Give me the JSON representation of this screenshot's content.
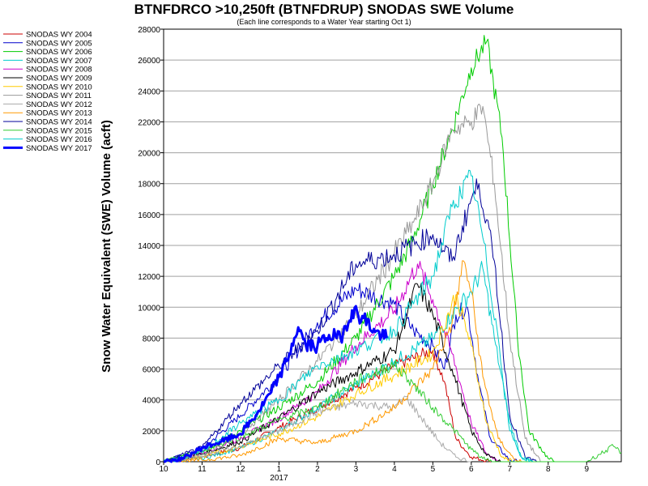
{
  "chart_data": {
    "type": "line",
    "title": "BTNFDRCO >10,250ft (BTNFDRUP) SNODAS SWE Volume",
    "subtitle": "(Each line corresponds to a Water Year starting Oct 1)",
    "ylabel": "Snow Water Equivalent (SWE) Volume (acft)",
    "xlabel": "",
    "ylim": [
      0,
      28000
    ],
    "yticks": [
      0,
      2000,
      4000,
      6000,
      8000,
      10000,
      12000,
      14000,
      16000,
      18000,
      20000,
      22000,
      24000,
      26000,
      28000
    ],
    "xlim_month_index": [
      0,
      11.9
    ],
    "xticks": [
      {
        "pos": 0,
        "label": "10"
      },
      {
        "pos": 1,
        "label": "11"
      },
      {
        "pos": 2,
        "label": "12"
      },
      {
        "pos": 3,
        "label": "1"
      },
      {
        "pos": 4,
        "label": "2"
      },
      {
        "pos": 5,
        "label": "3"
      },
      {
        "pos": 6,
        "label": "4"
      },
      {
        "pos": 7,
        "label": "5"
      },
      {
        "pos": 8,
        "label": "6"
      },
      {
        "pos": 9,
        "label": "7"
      },
      {
        "pos": 10,
        "label": "8"
      },
      {
        "pos": 11,
        "label": "9"
      }
    ],
    "year_label": {
      "pos": 3,
      "label": "2017"
    },
    "grid": "horizontal",
    "legend_position": "left",
    "series": [
      {
        "name": "SNODAS WY 2004",
        "color": "#cc0000",
        "width": 1,
        "points": [
          [
            0,
            0
          ],
          [
            1,
            300
          ],
          [
            2,
            900
          ],
          [
            3,
            2200
          ],
          [
            4,
            3500
          ],
          [
            5,
            4800
          ],
          [
            6,
            6200
          ],
          [
            7,
            7200
          ],
          [
            7.3,
            5200
          ],
          [
            7.6,
            1500
          ],
          [
            8,
            300
          ],
          [
            8.5,
            0
          ]
        ]
      },
      {
        "name": "SNODAS WY 2005",
        "color": "#0000cc",
        "width": 1,
        "points": [
          [
            0,
            0
          ],
          [
            1,
            800
          ],
          [
            2,
            3000
          ],
          [
            3,
            5500
          ],
          [
            4,
            9000
          ],
          [
            5,
            11200
          ],
          [
            6,
            10200
          ],
          [
            6.5,
            8500
          ],
          [
            7,
            7500
          ],
          [
            7.3,
            6000
          ],
          [
            7.6,
            9500
          ],
          [
            7.9,
            10000
          ],
          [
            8.2,
            5000
          ],
          [
            8.5,
            1500
          ],
          [
            9,
            100
          ],
          [
            9.3,
            0
          ]
        ]
      },
      {
        "name": "SNODAS WY 2006",
        "color": "#00cc00",
        "width": 1,
        "points": [
          [
            0,
            0
          ],
          [
            1,
            700
          ],
          [
            2,
            2000
          ],
          [
            3,
            3500
          ],
          [
            4,
            5200
          ],
          [
            5,
            8000
          ],
          [
            6,
            12000
          ],
          [
            6.5,
            14500
          ],
          [
            7,
            18000
          ],
          [
            7.5,
            21500
          ],
          [
            8,
            25500
          ],
          [
            8.4,
            27200
          ],
          [
            8.8,
            21000
          ],
          [
            9.2,
            8000
          ],
          [
            9.5,
            2000
          ],
          [
            10,
            200
          ],
          [
            10.2,
            0
          ]
        ]
      },
      {
        "name": "SNODAS WY 2007",
        "color": "#00cccc",
        "width": 1,
        "points": [
          [
            0,
            0
          ],
          [
            1,
            200
          ],
          [
            2,
            900
          ],
          [
            3,
            2000
          ],
          [
            4,
            3500
          ],
          [
            5,
            5000
          ],
          [
            6,
            6500
          ],
          [
            7,
            8000
          ],
          [
            7.5,
            9500
          ],
          [
            8,
            11000
          ],
          [
            8.3,
            12500
          ],
          [
            8.6,
            8000
          ],
          [
            9,
            2500
          ],
          [
            9.3,
            300
          ],
          [
            9.6,
            0
          ]
        ]
      },
      {
        "name": "SNODAS WY 2008",
        "color": "#cc00cc",
        "width": 1,
        "points": [
          [
            0,
            0
          ],
          [
            1,
            600
          ],
          [
            2,
            1500
          ],
          [
            3,
            2800
          ],
          [
            4,
            4500
          ],
          [
            5,
            7500
          ],
          [
            6,
            9800
          ],
          [
            6.6,
            12800
          ],
          [
            7,
            10500
          ],
          [
            7.5,
            7000
          ],
          [
            8,
            2500
          ],
          [
            8.4,
            500
          ],
          [
            8.8,
            0
          ]
        ]
      },
      {
        "name": "SNODAS WY 2009",
        "color": "#000000",
        "width": 1,
        "points": [
          [
            0,
            0
          ],
          [
            1,
            500
          ],
          [
            2,
            1300
          ],
          [
            3,
            2800
          ],
          [
            4,
            4500
          ],
          [
            5,
            5800
          ],
          [
            6,
            7200
          ],
          [
            6.6,
            11500
          ],
          [
            7,
            9500
          ],
          [
            7.5,
            6000
          ],
          [
            8,
            2000
          ],
          [
            8.4,
            400
          ],
          [
            8.8,
            0
          ]
        ]
      },
      {
        "name": "SNODAS WY 2010",
        "color": "#ffcc00",
        "width": 1,
        "points": [
          [
            0,
            0
          ],
          [
            1,
            300
          ],
          [
            2,
            1000
          ],
          [
            3,
            1800
          ],
          [
            4,
            2900
          ],
          [
            5,
            4400
          ],
          [
            6,
            5600
          ],
          [
            7,
            7000
          ],
          [
            7.6,
            10800
          ],
          [
            8,
            7500
          ],
          [
            8.4,
            2500
          ],
          [
            8.8,
            300
          ],
          [
            9.1,
            0
          ]
        ]
      },
      {
        "name": "SNODAS WY 2011",
        "color": "#999999",
        "width": 1,
        "points": [
          [
            0,
            0
          ],
          [
            1,
            300
          ],
          [
            2,
            1800
          ],
          [
            3,
            4000
          ],
          [
            4,
            6500
          ],
          [
            5,
            9500
          ],
          [
            6,
            13500
          ],
          [
            6.5,
            15500
          ],
          [
            7,
            18000
          ],
          [
            7.5,
            21500
          ],
          [
            8,
            22000
          ],
          [
            8.3,
            23000
          ],
          [
            8.6,
            18000
          ],
          [
            9,
            8000
          ],
          [
            9.4,
            1500
          ],
          [
            9.8,
            0
          ]
        ]
      },
      {
        "name": "SNODAS WY 2012",
        "color": "#aaaaaa",
        "width": 1,
        "points": [
          [
            0,
            0
          ],
          [
            1,
            400
          ],
          [
            2,
            1000
          ],
          [
            3,
            2000
          ],
          [
            4,
            3200
          ],
          [
            5,
            3800
          ],
          [
            6,
            3500
          ],
          [
            6.3,
            4200
          ],
          [
            6.8,
            2500
          ],
          [
            7.2,
            1200
          ],
          [
            7.6,
            300
          ],
          [
            8,
            0
          ]
        ]
      },
      {
        "name": "SNODAS WY 2013",
        "color": "#ff9900",
        "width": 1,
        "points": [
          [
            0,
            0
          ],
          [
            1,
            100
          ],
          [
            2,
            400
          ],
          [
            3,
            1500
          ],
          [
            4,
            1200
          ],
          [
            5,
            2000
          ],
          [
            6,
            3500
          ],
          [
            7,
            6000
          ],
          [
            7.5,
            9000
          ],
          [
            7.8,
            13000
          ],
          [
            8,
            11000
          ],
          [
            8.3,
            5500
          ],
          [
            8.7,
            1500
          ],
          [
            9.1,
            200
          ],
          [
            9.3,
            0
          ]
        ]
      },
      {
        "name": "SNODAS WY 2014",
        "color": "#000099",
        "width": 1,
        "points": [
          [
            0,
            0
          ],
          [
            1,
            900
          ],
          [
            2,
            3800
          ],
          [
            3,
            6200
          ],
          [
            4,
            8500
          ],
          [
            5,
            12800
          ],
          [
            6,
            13400
          ],
          [
            7,
            14700
          ],
          [
            7.5,
            13000
          ],
          [
            8,
            17000
          ],
          [
            8.2,
            18000
          ],
          [
            8.6,
            13000
          ],
          [
            9,
            3000
          ],
          [
            9.4,
            300
          ],
          [
            9.7,
            0
          ]
        ]
      },
      {
        "name": "SNODAS WY 2015",
        "color": "#33cc33",
        "width": 1,
        "points": [
          [
            0,
            0
          ],
          [
            1,
            700
          ],
          [
            2,
            1600
          ],
          [
            3,
            2700
          ],
          [
            4,
            3500
          ],
          [
            5,
            5200
          ],
          [
            6,
            6300
          ],
          [
            6.5,
            5000
          ],
          [
            7,
            3500
          ],
          [
            7.5,
            2200
          ],
          [
            8,
            800
          ],
          [
            8.3,
            200
          ],
          [
            8.6,
            0
          ],
          [
            11,
            0
          ],
          [
            11.7,
            1000
          ],
          [
            11.9,
            600
          ]
        ]
      },
      {
        "name": "SNODAS WY 2016",
        "color": "#00cccc",
        "width": 1,
        "points": [
          [
            0,
            0
          ],
          [
            1,
            600
          ],
          [
            2,
            2500
          ],
          [
            3,
            4000
          ],
          [
            4,
            6200
          ],
          [
            5,
            7200
          ],
          [
            6,
            8500
          ],
          [
            7,
            12000
          ],
          [
            7.5,
            16500
          ],
          [
            8,
            18500
          ],
          [
            8.3,
            14500
          ],
          [
            8.7,
            8000
          ],
          [
            9,
            2000
          ],
          [
            9.3,
            300
          ],
          [
            9.6,
            0
          ]
        ]
      },
      {
        "name": "SNODAS WY 2017",
        "color": "#0000ff",
        "width": 3,
        "points": [
          [
            0,
            0
          ],
          [
            0.5,
            200
          ],
          [
            1,
            900
          ],
          [
            1.5,
            1300
          ],
          [
            2,
            1800
          ],
          [
            2.4,
            3000
          ],
          [
            2.8,
            4500
          ],
          [
            3,
            5500
          ],
          [
            3.2,
            6500
          ],
          [
            3.4,
            8000
          ],
          [
            3.5,
            8700
          ],
          [
            3.7,
            7500
          ],
          [
            4,
            7500
          ],
          [
            4.3,
            8200
          ],
          [
            4.6,
            8000
          ],
          [
            4.9,
            9800
          ],
          [
            5.2,
            9300
          ],
          [
            5.5,
            8400
          ],
          [
            5.8,
            8000
          ]
        ]
      }
    ]
  }
}
